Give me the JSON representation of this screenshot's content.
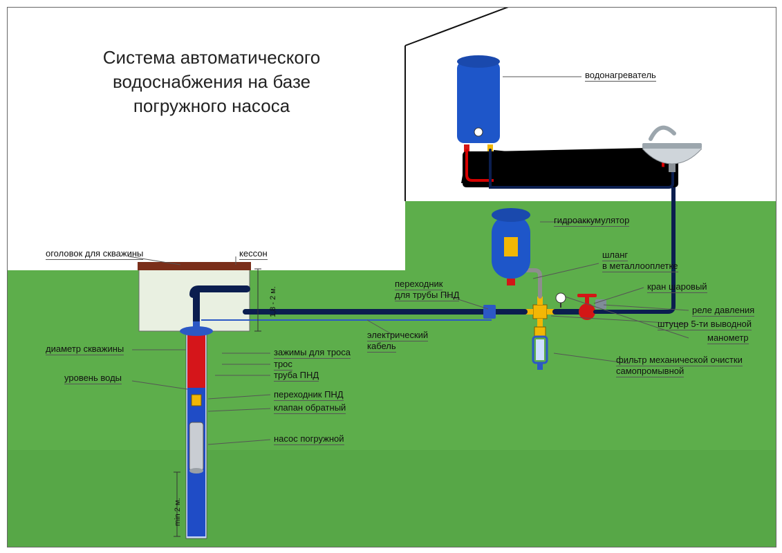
{
  "title": "Система  автоматического\nводоснабжения  на  базе\nпогружного  насоса",
  "title_fontsize": 26,
  "colors": {
    "ground": "#5DAE4B",
    "ground_deep": "#4E9A41",
    "sky": "#FFFFFF",
    "pipe_navy": "#0B1E4F",
    "hot_red": "#D60000",
    "well_red": "#D5151A",
    "well_blue": "#1F4CC6",
    "pump_silver": "#C9CDD3",
    "cable_blue": "#2C58C5",
    "acc_blue": "#1E56C9",
    "heater_blue": "#1E56C9",
    "yellow": "#F2B705",
    "red_valve": "#D31616",
    "grey": "#8E8E8E",
    "kesson_fill": "#E9F0E1",
    "kesson_lid": "#7A2E1A",
    "faucet": "#9CA6AD",
    "leader": "#555555"
  },
  "labels": {
    "ogolovok": "оголовок  для  скважины",
    "kesson": "кессон",
    "depth_dim": "1,8 - 2 м.",
    "diam": "диаметр  скважины",
    "water_level": "уровень  воды",
    "clamps": "зажимы  для  троса",
    "tros": "трос",
    "truba_pnd": "труба  ПНД",
    "perehodnik_pnd": "переходник  ПНД",
    "klapan": "клапан  обратный",
    "pump": "насос  погружной",
    "min_depth": "min  2  м.",
    "perehodnik_truby": "переходник\nдля  трубы  ПНД",
    "elkabel": "электрический\nкабель",
    "gidro": "гидроаккумулятор",
    "heater": "водонагреватель",
    "shlang": "шланг\nв  металлооплетке",
    "kran": "кран  шаровый",
    "rele": "реле  давления",
    "shtutser": "штуцер  5-ти  выводной",
    "manometr": "манометр",
    "filter": "фильтр  механической  очистки\nсамопромывной"
  }
}
